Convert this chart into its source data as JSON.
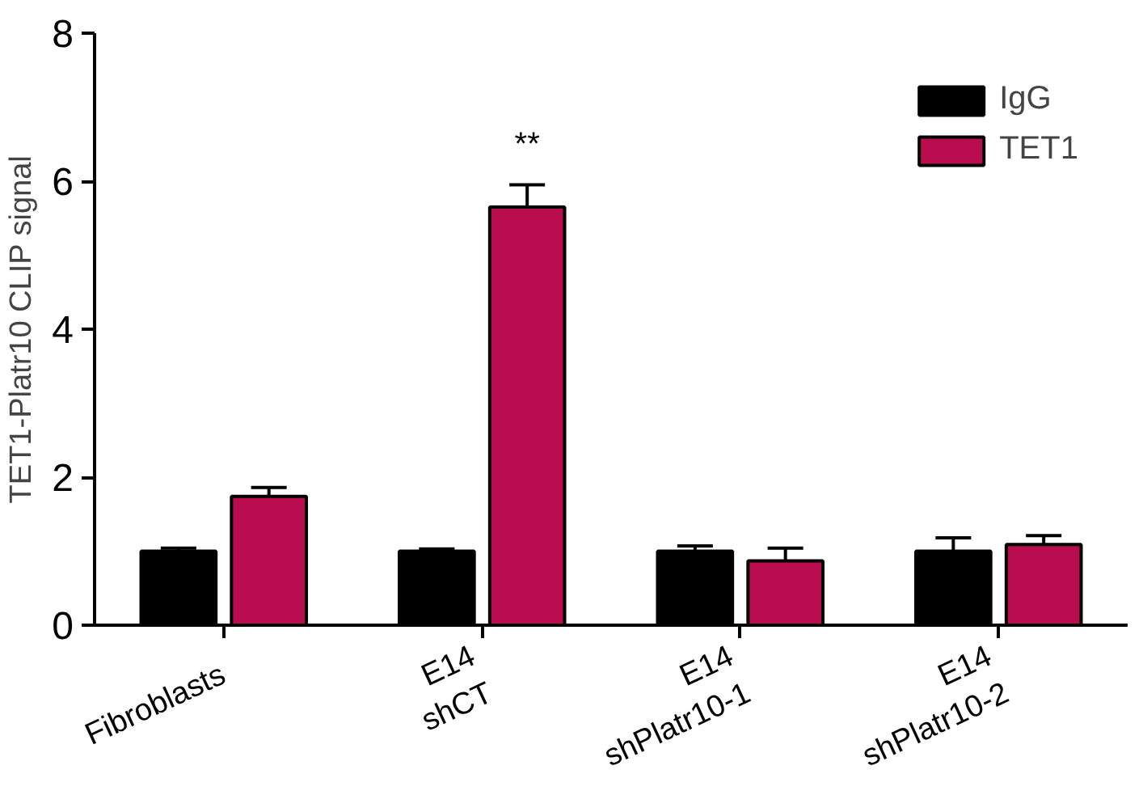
{
  "chart_data": {
    "type": "bar",
    "ylabel": "TET1-Platr10 CLIP signal",
    "categories": [
      "Fibroblasts",
      "E14\nshCT",
      "E14\nshPlatr10-1",
      "E14\nshPlatr10-2"
    ],
    "series": [
      {
        "name": "IgG",
        "color": "#000000",
        "values": [
          1.0,
          1.0,
          1.0,
          1.0
        ],
        "errors": [
          0.04,
          0.03,
          0.07,
          0.18
        ]
      },
      {
        "name": "TET1",
        "color": "#b90d4f",
        "values": [
          1.74,
          5.65,
          0.87,
          1.09
        ],
        "errors": [
          0.12,
          0.3,
          0.17,
          0.12
        ]
      }
    ],
    "ylim": [
      0,
      8
    ],
    "yticks": [
      0,
      2,
      4,
      6,
      8
    ],
    "grid": false,
    "legend": "top right",
    "annotations": [
      "**"
    ]
  }
}
